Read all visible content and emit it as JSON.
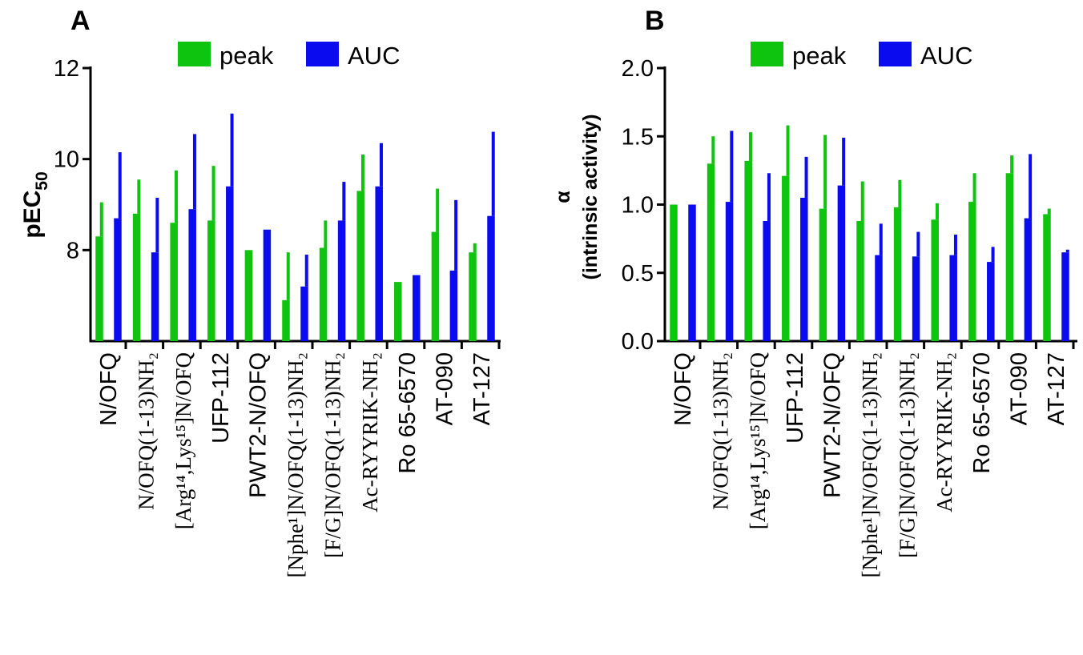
{
  "chart_data": [
    {
      "type": "bar",
      "panel": "A",
      "ylabel": "pEC",
      "ylabel_sub": "50",
      "ylim": [
        6.0,
        12.0
      ],
      "yticks": [
        8,
        10,
        12
      ],
      "grid": false,
      "legend_position": "top",
      "categories": [
        {
          "text": "N/OFQ",
          "style": "sans"
        },
        {
          "text": "N/OFQ(1-13)NH₂",
          "style": "serif"
        },
        {
          "text": "[Arg¹⁴,Lys¹⁵]N/OFQ",
          "style": "serif"
        },
        {
          "text": "UFP-112",
          "style": "sans"
        },
        {
          "text": "PWT2-N/OFQ",
          "style": "sans"
        },
        {
          "text": "[Nphe¹]N/OFQ(1-13)NH₂",
          "style": "serif"
        },
        {
          "text": "[F/G]N/OFQ(1-13)NH₂",
          "style": "serif"
        },
        {
          "text": "Ac-RYYRIK-NH₂",
          "style": "serif"
        },
        {
          "text": "Ro 65-6570",
          "style": "sans"
        },
        {
          "text": "AT-090",
          "style": "sans"
        },
        {
          "text": "AT-127",
          "style": "sans"
        }
      ],
      "series": [
        {
          "name": "peak",
          "color": "#0ec40e",
          "values": [
            8.3,
            8.8,
            8.6,
            8.65,
            8.0,
            6.9,
            8.05,
            9.3,
            7.3,
            8.4,
            7.95
          ],
          "errors": [
            0.75,
            0.75,
            1.15,
            1.2,
            0,
            1.05,
            0.6,
            0.8,
            0,
            0.95,
            0.2
          ]
        },
        {
          "name": "AUC",
          "color": "#0b0bf0",
          "values": [
            8.7,
            7.95,
            8.9,
            9.4,
            8.45,
            7.2,
            8.65,
            9.4,
            7.45,
            7.55,
            8.75
          ],
          "errors": [
            1.45,
            1.2,
            1.65,
            1.6,
            0,
            0.7,
            0.85,
            0.95,
            0,
            1.55,
            1.85
          ]
        }
      ]
    },
    {
      "type": "bar",
      "panel": "B",
      "ylabel_line1": "α",
      "ylabel_line2": "(intrinsic activity)",
      "ylim": [
        0.0,
        2.0
      ],
      "yticks": [
        "0.0",
        "0.5",
        "1.0",
        "1.5",
        "2.0"
      ],
      "grid": false,
      "legend_position": "top",
      "categories": [
        {
          "text": "N/OFQ",
          "style": "sans"
        },
        {
          "text": "N/OFQ(1-13)NH₂",
          "style": "serif"
        },
        {
          "text": "[Arg¹⁴,Lys¹⁵]N/OFQ",
          "style": "serif"
        },
        {
          "text": "UFP-112",
          "style": "sans"
        },
        {
          "text": "PWT2-N/OFQ",
          "style": "sans"
        },
        {
          "text": "[Nphe¹]N/OFQ(1-13)NH₂",
          "style": "serif"
        },
        {
          "text": "[F/G]N/OFQ(1-13)NH₂",
          "style": "serif"
        },
        {
          "text": "Ac-RYYRIK-NH₂",
          "style": "serif"
        },
        {
          "text": "Ro 65-6570",
          "style": "sans"
        },
        {
          "text": "AT-090",
          "style": "sans"
        },
        {
          "text": "AT-127",
          "style": "sans"
        }
      ],
      "series": [
        {
          "name": "peak",
          "color": "#0ec40e",
          "values": [
            1.0,
            1.3,
            1.32,
            1.21,
            0.97,
            0.88,
            0.98,
            0.89,
            1.02,
            1.23,
            0.93
          ],
          "errors": [
            0,
            0.2,
            0.21,
            0.37,
            0.54,
            0.29,
            0.2,
            0.12,
            0.21,
            0.13,
            0.04
          ]
        },
        {
          "name": "AUC",
          "color": "#0b0bf0",
          "values": [
            1.0,
            1.02,
            0.88,
            1.05,
            1.14,
            0.63,
            0.62,
            0.63,
            0.58,
            0.9,
            0.65
          ],
          "errors": [
            0,
            0.52,
            0.35,
            0.3,
            0.35,
            0.23,
            0.18,
            0.15,
            0.11,
            0.47,
            0.02
          ]
        }
      ]
    }
  ]
}
